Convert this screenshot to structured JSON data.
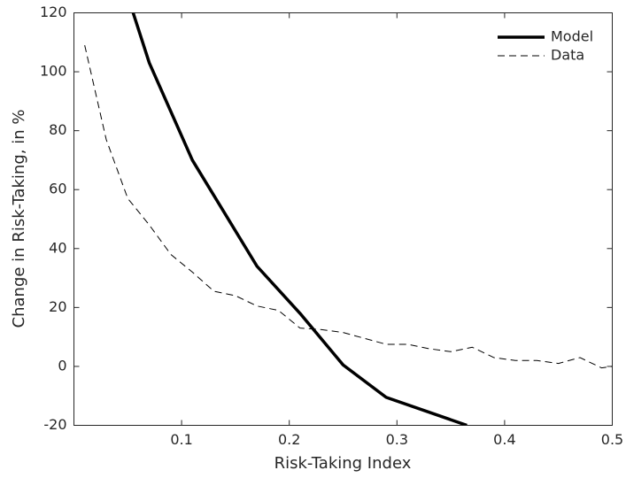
{
  "chart_data": {
    "type": "line",
    "xlabel": "Risk-Taking Index",
    "ylabel": "Change in Risk-Taking, in %",
    "xlim": [
      0,
      0.5
    ],
    "ylim": [
      -20,
      120
    ],
    "xticks": [
      0.1,
      0.2,
      0.3,
      0.4,
      0.5
    ],
    "yticks": [
      -20,
      0,
      20,
      40,
      60,
      80,
      100,
      120
    ],
    "legend": "top-right",
    "series": [
      {
        "name": "Model",
        "color": "#000000",
        "style": "solid",
        "width": 3.5,
        "x": [
          0.055,
          0.07,
          0.11,
          0.17,
          0.21,
          0.25,
          0.29,
          0.365
        ],
        "values": [
          120,
          103,
          70,
          34,
          18,
          0.5,
          -10.5,
          -20
        ]
      },
      {
        "name": "Data",
        "color": "#000000",
        "style": "dashed",
        "width": 1,
        "x": [
          0.01,
          0.03,
          0.05,
          0.07,
          0.09,
          0.11,
          0.13,
          0.15,
          0.17,
          0.19,
          0.21,
          0.23,
          0.25,
          0.27,
          0.29,
          0.31,
          0.33,
          0.35,
          0.37,
          0.39,
          0.41,
          0.43,
          0.45,
          0.47,
          0.49,
          0.5
        ],
        "values": [
          109,
          77,
          57,
          48,
          38,
          32,
          25.5,
          24,
          20.5,
          19,
          13,
          12.5,
          11.5,
          9.5,
          7.5,
          7.5,
          6,
          5,
          6.5,
          3,
          2,
          2,
          1,
          3,
          -0.5,
          0
        ]
      }
    ]
  }
}
